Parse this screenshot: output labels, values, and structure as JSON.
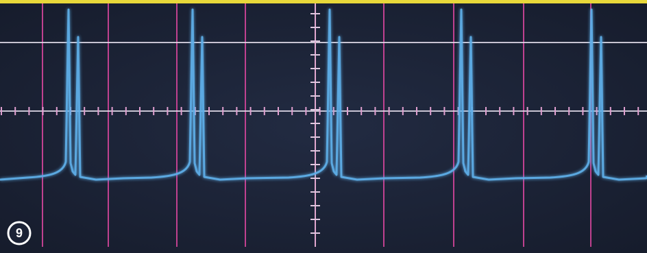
{
  "label": "9"
}
